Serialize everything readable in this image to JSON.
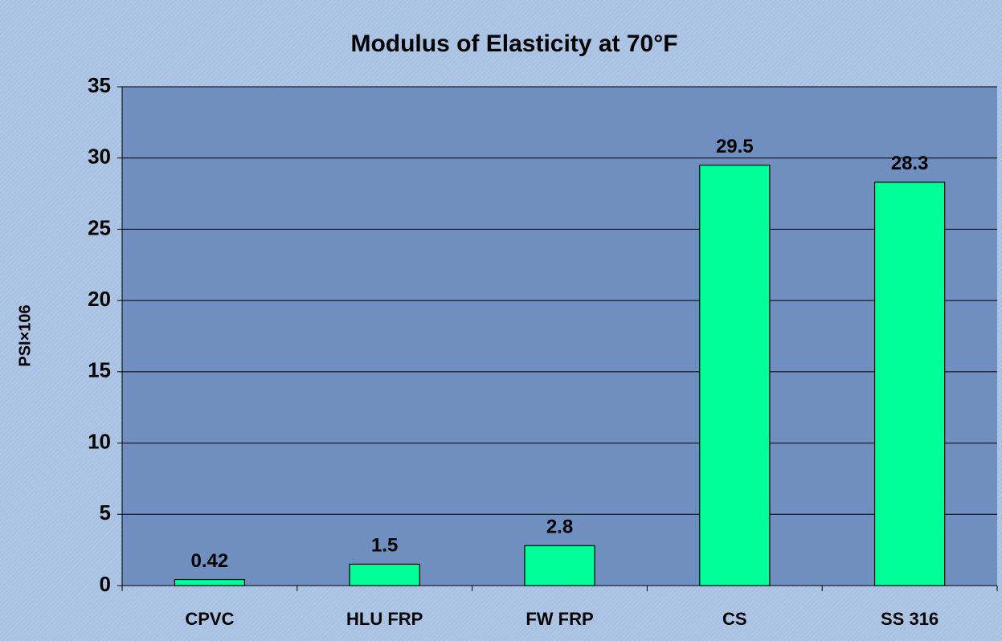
{
  "chart_data": {
    "type": "bar",
    "title": "Modulus of Elasticity at 70°F",
    "y_label": "PSI×106",
    "categories": [
      "CPVC",
      "HLU FRP",
      "FW FRP",
      "CS",
      "SS 316"
    ],
    "values": [
      0.42,
      1.5,
      2.8,
      29.5,
      28.3
    ],
    "color": "#00ff99",
    "ylim": [
      0,
      35
    ],
    "yticks": [
      0,
      5,
      10,
      15,
      20,
      25,
      30,
      35
    ],
    "grid": true
  }
}
